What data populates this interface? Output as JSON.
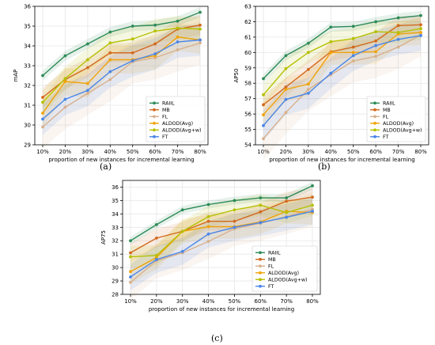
{
  "chart_data": [
    {
      "type": "line",
      "panel_caption": "(a)",
      "xlabel": "proportion of new instances for incremental learning",
      "ylabel": "mAP",
      "categories": [
        "10%",
        "20%",
        "30%",
        "40%",
        "50%",
        "60%",
        "70%",
        "80%"
      ],
      "ylim": [
        29,
        36
      ],
      "yticks": [
        "29",
        "30",
        "31",
        "32",
        "33",
        "34",
        "35",
        "36"
      ],
      "grid": true,
      "legend_position": "lower-right",
      "series": [
        {
          "name": "RAIIL",
          "color": "#2e8b57",
          "values": [
            32.5,
            33.5,
            34.1,
            34.7,
            35.0,
            35.05,
            35.25,
            35.7
          ],
          "band": [
            0.25,
            0.25,
            0.25,
            0.25,
            0.25,
            0.25,
            0.25,
            0.25
          ]
        },
        {
          "name": "MB",
          "color": "#d2691e",
          "values": [
            31.4,
            32.3,
            32.9,
            33.65,
            33.65,
            34.1,
            34.85,
            35.05
          ],
          "band": [
            0.5,
            0.5,
            0.5,
            0.5,
            0.5,
            0.5,
            0.5,
            0.5
          ]
        },
        {
          "name": "FL",
          "color": "#d8b08c",
          "values": [
            29.9,
            30.9,
            31.6,
            32.3,
            33.2,
            33.4,
            33.8,
            34.15
          ],
          "band": [
            1.1,
            1.1,
            1.1,
            1.1,
            1.1,
            1.1,
            1.1,
            1.1
          ]
        },
        {
          "name": "ALDOD(Avg)",
          "color": "#f0a30a",
          "values": [
            30.6,
            32.2,
            32.1,
            33.3,
            33.3,
            33.5,
            34.45,
            34.3
          ],
          "band": [
            0.7,
            0.7,
            0.7,
            0.7,
            0.7,
            0.7,
            0.7,
            0.7
          ]
        },
        {
          "name": "ALDOD(Avg+w)",
          "color": "#b5c000",
          "values": [
            31.15,
            32.35,
            33.3,
            34.15,
            34.35,
            34.75,
            34.9,
            34.85
          ],
          "band": [
            0.6,
            0.6,
            0.6,
            0.6,
            0.6,
            0.6,
            0.6,
            0.6
          ]
        },
        {
          "name": "FT",
          "color": "#4a86e8",
          "values": [
            30.3,
            31.3,
            31.75,
            32.7,
            33.25,
            33.6,
            34.2,
            34.3
          ],
          "band": [
            0.8,
            0.8,
            0.8,
            0.8,
            0.8,
            0.8,
            0.8,
            0.8
          ]
        }
      ]
    },
    {
      "type": "line",
      "panel_caption": "(b)",
      "xlabel": "proportion of new instances for incremental learning",
      "ylabel": "AP50",
      "categories": [
        "10%",
        "20%",
        "30%",
        "40%",
        "50%",
        "60%",
        "70%",
        "80%"
      ],
      "ylim": [
        54,
        63
      ],
      "yticks": [
        "54",
        "55",
        "56",
        "57",
        "58",
        "59",
        "60",
        "61",
        "62",
        "63"
      ],
      "grid": true,
      "legend_position": "lower-right",
      "series": [
        {
          "name": "RAIIL",
          "color": "#2e8b57",
          "values": [
            58.3,
            59.8,
            60.6,
            61.65,
            61.7,
            62.0,
            62.25,
            62.4
          ],
          "band": [
            0.3,
            0.3,
            0.3,
            0.3,
            0.3,
            0.3,
            0.3,
            0.3
          ]
        },
        {
          "name": "MB",
          "color": "#d2691e",
          "values": [
            56.6,
            57.75,
            58.9,
            60.05,
            60.35,
            60.75,
            61.75,
            61.8
          ],
          "band": [
            0.6,
            0.6,
            0.6,
            0.6,
            0.6,
            0.6,
            0.6,
            0.6
          ]
        },
        {
          "name": "FL",
          "color": "#d8b08c",
          "values": [
            54.4,
            56.1,
            57.6,
            58.55,
            59.45,
            59.75,
            60.35,
            61.15
          ],
          "band": [
            1.4,
            1.4,
            1.4,
            1.4,
            1.4,
            1.4,
            1.4,
            1.4
          ]
        },
        {
          "name": "ALDOD(Avg)",
          "color": "#f0a30a",
          "values": [
            55.95,
            57.6,
            57.95,
            60.0,
            60.0,
            60.05,
            61.2,
            61.3
          ],
          "band": [
            0.8,
            0.8,
            0.8,
            0.8,
            0.8,
            0.8,
            0.8,
            0.8
          ]
        },
        {
          "name": "ALDOD(Avg+w)",
          "color": "#b5c000",
          "values": [
            57.25,
            58.95,
            60.0,
            60.7,
            60.9,
            61.35,
            61.3,
            61.55
          ],
          "band": [
            0.7,
            0.7,
            0.7,
            0.7,
            0.7,
            0.7,
            0.7,
            0.7
          ]
        },
        {
          "name": "FT",
          "color": "#4a86e8",
          "values": [
            55.25,
            56.95,
            57.35,
            58.65,
            59.8,
            60.45,
            60.85,
            61.1
          ],
          "band": [
            1.0,
            1.0,
            1.0,
            1.0,
            1.0,
            1.0,
            1.0,
            1.0
          ]
        }
      ]
    },
    {
      "type": "line",
      "panel_caption": "(c)",
      "xlabel": "proportion of new instances for incremental learning",
      "ylabel": "AP75",
      "categories": [
        "10%",
        "20%",
        "30%",
        "40%",
        "50%",
        "60%",
        "70%",
        "80%"
      ],
      "ylim": [
        28,
        36.5
      ],
      "yticks": [
        "28",
        "29",
        "30",
        "31",
        "32",
        "33",
        "34",
        "35",
        "36"
      ],
      "grid": true,
      "legend_position": "lower-right",
      "series": [
        {
          "name": "RAIIL",
          "color": "#2e8b57",
          "values": [
            32.0,
            33.2,
            34.3,
            34.7,
            35.0,
            35.2,
            35.2,
            36.1
          ],
          "band": [
            0.3,
            0.3,
            0.3,
            0.3,
            0.3,
            0.3,
            0.3,
            0.3
          ]
        },
        {
          "name": "MB",
          "color": "#d2691e",
          "values": [
            31.1,
            32.2,
            32.7,
            33.45,
            33.45,
            34.15,
            34.95,
            35.25
          ],
          "band": [
            0.7,
            0.7,
            0.7,
            0.7,
            0.7,
            0.7,
            0.7,
            0.7
          ]
        },
        {
          "name": "FL",
          "color": "#d8b08c",
          "values": [
            28.9,
            30.5,
            31.1,
            31.95,
            32.9,
            33.3,
            33.8,
            34.35
          ],
          "band": [
            1.3,
            1.3,
            1.3,
            1.3,
            1.3,
            1.3,
            1.3,
            1.3
          ]
        },
        {
          "name": "ALDOD(Avg)",
          "color": "#f0a30a",
          "values": [
            29.7,
            30.75,
            32.7,
            33.05,
            33.05,
            33.4,
            34.2,
            34.1
          ],
          "band": [
            0.9,
            0.9,
            0.9,
            0.9,
            0.9,
            0.9,
            0.9,
            0.9
          ]
        },
        {
          "name": "ALDOD(Avg+w)",
          "color": "#b5c000",
          "values": [
            30.8,
            30.9,
            32.7,
            33.8,
            34.3,
            34.65,
            34.1,
            34.65
          ],
          "band": [
            0.8,
            0.8,
            0.8,
            0.8,
            0.8,
            0.8,
            0.8,
            0.8
          ]
        },
        {
          "name": "FT",
          "color": "#4a86e8",
          "values": [
            29.3,
            30.6,
            31.2,
            32.5,
            33.0,
            33.35,
            33.75,
            34.2
          ],
          "band": [
            1.0,
            1.0,
            1.0,
            1.0,
            1.0,
            1.0,
            1.0,
            1.0
          ]
        }
      ]
    }
  ]
}
